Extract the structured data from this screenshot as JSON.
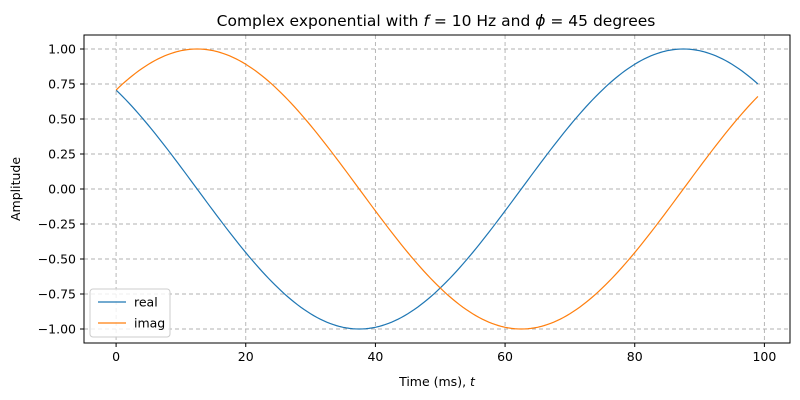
{
  "chart_data": {
    "type": "line",
    "title": "Complex exponential with f = 10 Hz and ϕ = 45 degrees",
    "title_parts": {
      "pre": "Complex exponential with ",
      "f_symbol": "f",
      "f_value": " = 10 Hz and ",
      "phi_symbol": "ϕ",
      "phi_value": " = 45 degrees"
    },
    "xlabel": "Time (ms), t",
    "xlabel_parts": {
      "text": "Time (ms), ",
      "var": "t"
    },
    "ylabel": "Amplitude",
    "xlim": [
      -4.95,
      103.95
    ],
    "ylim": [
      -1.1,
      1.1
    ],
    "xticks": [
      0,
      20,
      40,
      60,
      80,
      100
    ],
    "xtick_labels": [
      "0",
      "20",
      "40",
      "60",
      "80",
      "100"
    ],
    "yticks": [
      -1.0,
      -0.75,
      -0.5,
      -0.25,
      0.0,
      0.25,
      0.5,
      0.75,
      1.0
    ],
    "ytick_labels": [
      "−1.00",
      "−0.75",
      "−0.50",
      "−0.25",
      "0.00",
      "0.25",
      "0.50",
      "0.75",
      "1.00"
    ],
    "grid": true,
    "legend_position": "lower-left",
    "frequency_hz": 10,
    "phase_deg": 45,
    "x": [
      0,
      5,
      10,
      15,
      20,
      25,
      30,
      35,
      40,
      45,
      50,
      55,
      60,
      65,
      70,
      75,
      80,
      85,
      90,
      95,
      99
    ],
    "series": [
      {
        "name": "real",
        "color": "#1f77b4",
        "values": [
          0.707,
          0.454,
          0.156,
          -0.156,
          -0.454,
          -0.707,
          -0.891,
          -0.988,
          -0.988,
          -0.891,
          -0.707,
          -0.454,
          -0.156,
          0.156,
          0.454,
          0.707,
          0.891,
          0.988,
          0.988,
          0.891,
          0.75
        ]
      },
      {
        "name": "imag",
        "color": "#ff7f0e",
        "values": [
          0.707,
          0.891,
          0.988,
          0.988,
          0.891,
          0.707,
          0.454,
          0.156,
          -0.156,
          -0.454,
          -0.707,
          -0.891,
          -0.988,
          -0.988,
          -0.891,
          -0.707,
          -0.454,
          -0.156,
          0.156,
          0.454,
          0.661
        ]
      }
    ]
  }
}
